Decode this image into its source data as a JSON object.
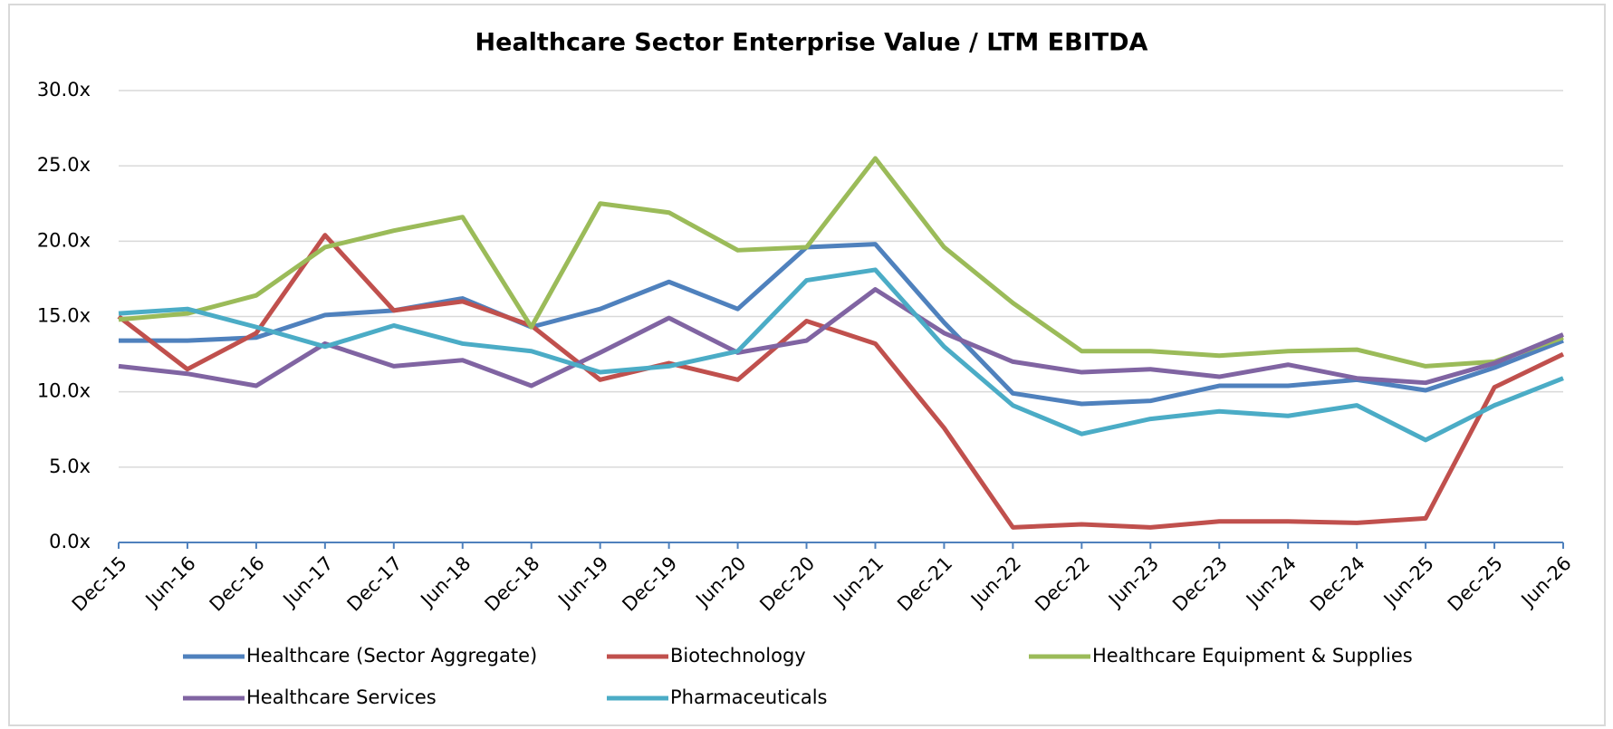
{
  "chart_data": {
    "type": "line",
    "title": "Healthcare Sector Enterprise Value / LTM EBITDA",
    "categories": [
      "Dec-15",
      "Jun-16",
      "Dec-16",
      "Jun-17",
      "Dec-17",
      "Jun-18",
      "Dec-18",
      "Jun-19",
      "Dec-19",
      "Jun-20",
      "Dec-20",
      "Jun-21",
      "Dec-21",
      "Jun-22",
      "Dec-22",
      "Jun-23",
      "Dec-23",
      "Jun-24",
      "Dec-24",
      "Jun-25",
      "Dec-25",
      "Jun-26"
    ],
    "series": [
      {
        "name": "Healthcare (Sector Aggregate)",
        "color": "#4f81bd",
        "values": [
          13.4,
          13.4,
          13.6,
          15.1,
          15.4,
          16.2,
          14.3,
          15.5,
          17.3,
          15.5,
          19.6,
          19.8,
          14.6,
          9.9,
          9.2,
          9.4,
          10.4,
          10.4,
          10.8,
          10.1,
          11.6,
          13.4
        ]
      },
      {
        "name": "Biotechnology",
        "color": "#c0504d",
        "values": [
          15.0,
          11.5,
          13.9,
          20.4,
          15.4,
          16.0,
          14.4,
          10.8,
          11.9,
          10.8,
          14.7,
          13.2,
          7.6,
          1.0,
          1.2,
          1.0,
          1.4,
          1.4,
          1.3,
          1.6,
          10.3,
          12.5
        ]
      },
      {
        "name": "Healthcare Equipment & Supplies",
        "color": "#9bbb59",
        "values": [
          14.8,
          15.2,
          16.4,
          19.6,
          20.7,
          21.6,
          14.3,
          22.5,
          21.9,
          19.4,
          19.6,
          25.5,
          19.6,
          15.9,
          12.7,
          12.7,
          12.4,
          12.7,
          12.8,
          11.7,
          12.0,
          13.6
        ]
      },
      {
        "name": "Healthcare Services",
        "color": "#8064a2",
        "values": [
          11.7,
          11.2,
          10.4,
          13.2,
          11.7,
          12.1,
          10.4,
          12.6,
          14.9,
          12.6,
          13.4,
          16.8,
          13.9,
          12.0,
          11.3,
          11.5,
          11.0,
          11.8,
          10.9,
          10.6,
          11.9,
          13.8
        ]
      },
      {
        "name": "Pharmaceuticals",
        "color": "#4bacc6",
        "values": [
          15.2,
          15.5,
          14.3,
          13.0,
          14.4,
          13.2,
          12.7,
          11.3,
          11.7,
          12.7,
          17.4,
          18.1,
          13.0,
          9.1,
          7.2,
          8.2,
          8.7,
          8.4,
          9.1,
          6.8,
          9.1,
          10.9
        ]
      }
    ],
    "ylim": [
      0,
      30
    ],
    "yticks": [
      {
        "value": 0,
        "label": "0.0x"
      },
      {
        "value": 5,
        "label": "5.0x"
      },
      {
        "value": 10,
        "label": "10.0x"
      },
      {
        "value": 15,
        "label": "15.0x"
      },
      {
        "value": 20,
        "label": "20.0x"
      },
      {
        "value": 25,
        "label": "25.0x"
      },
      {
        "value": 30,
        "label": "30.0x"
      }
    ],
    "grid": true,
    "legend": "bottom"
  }
}
